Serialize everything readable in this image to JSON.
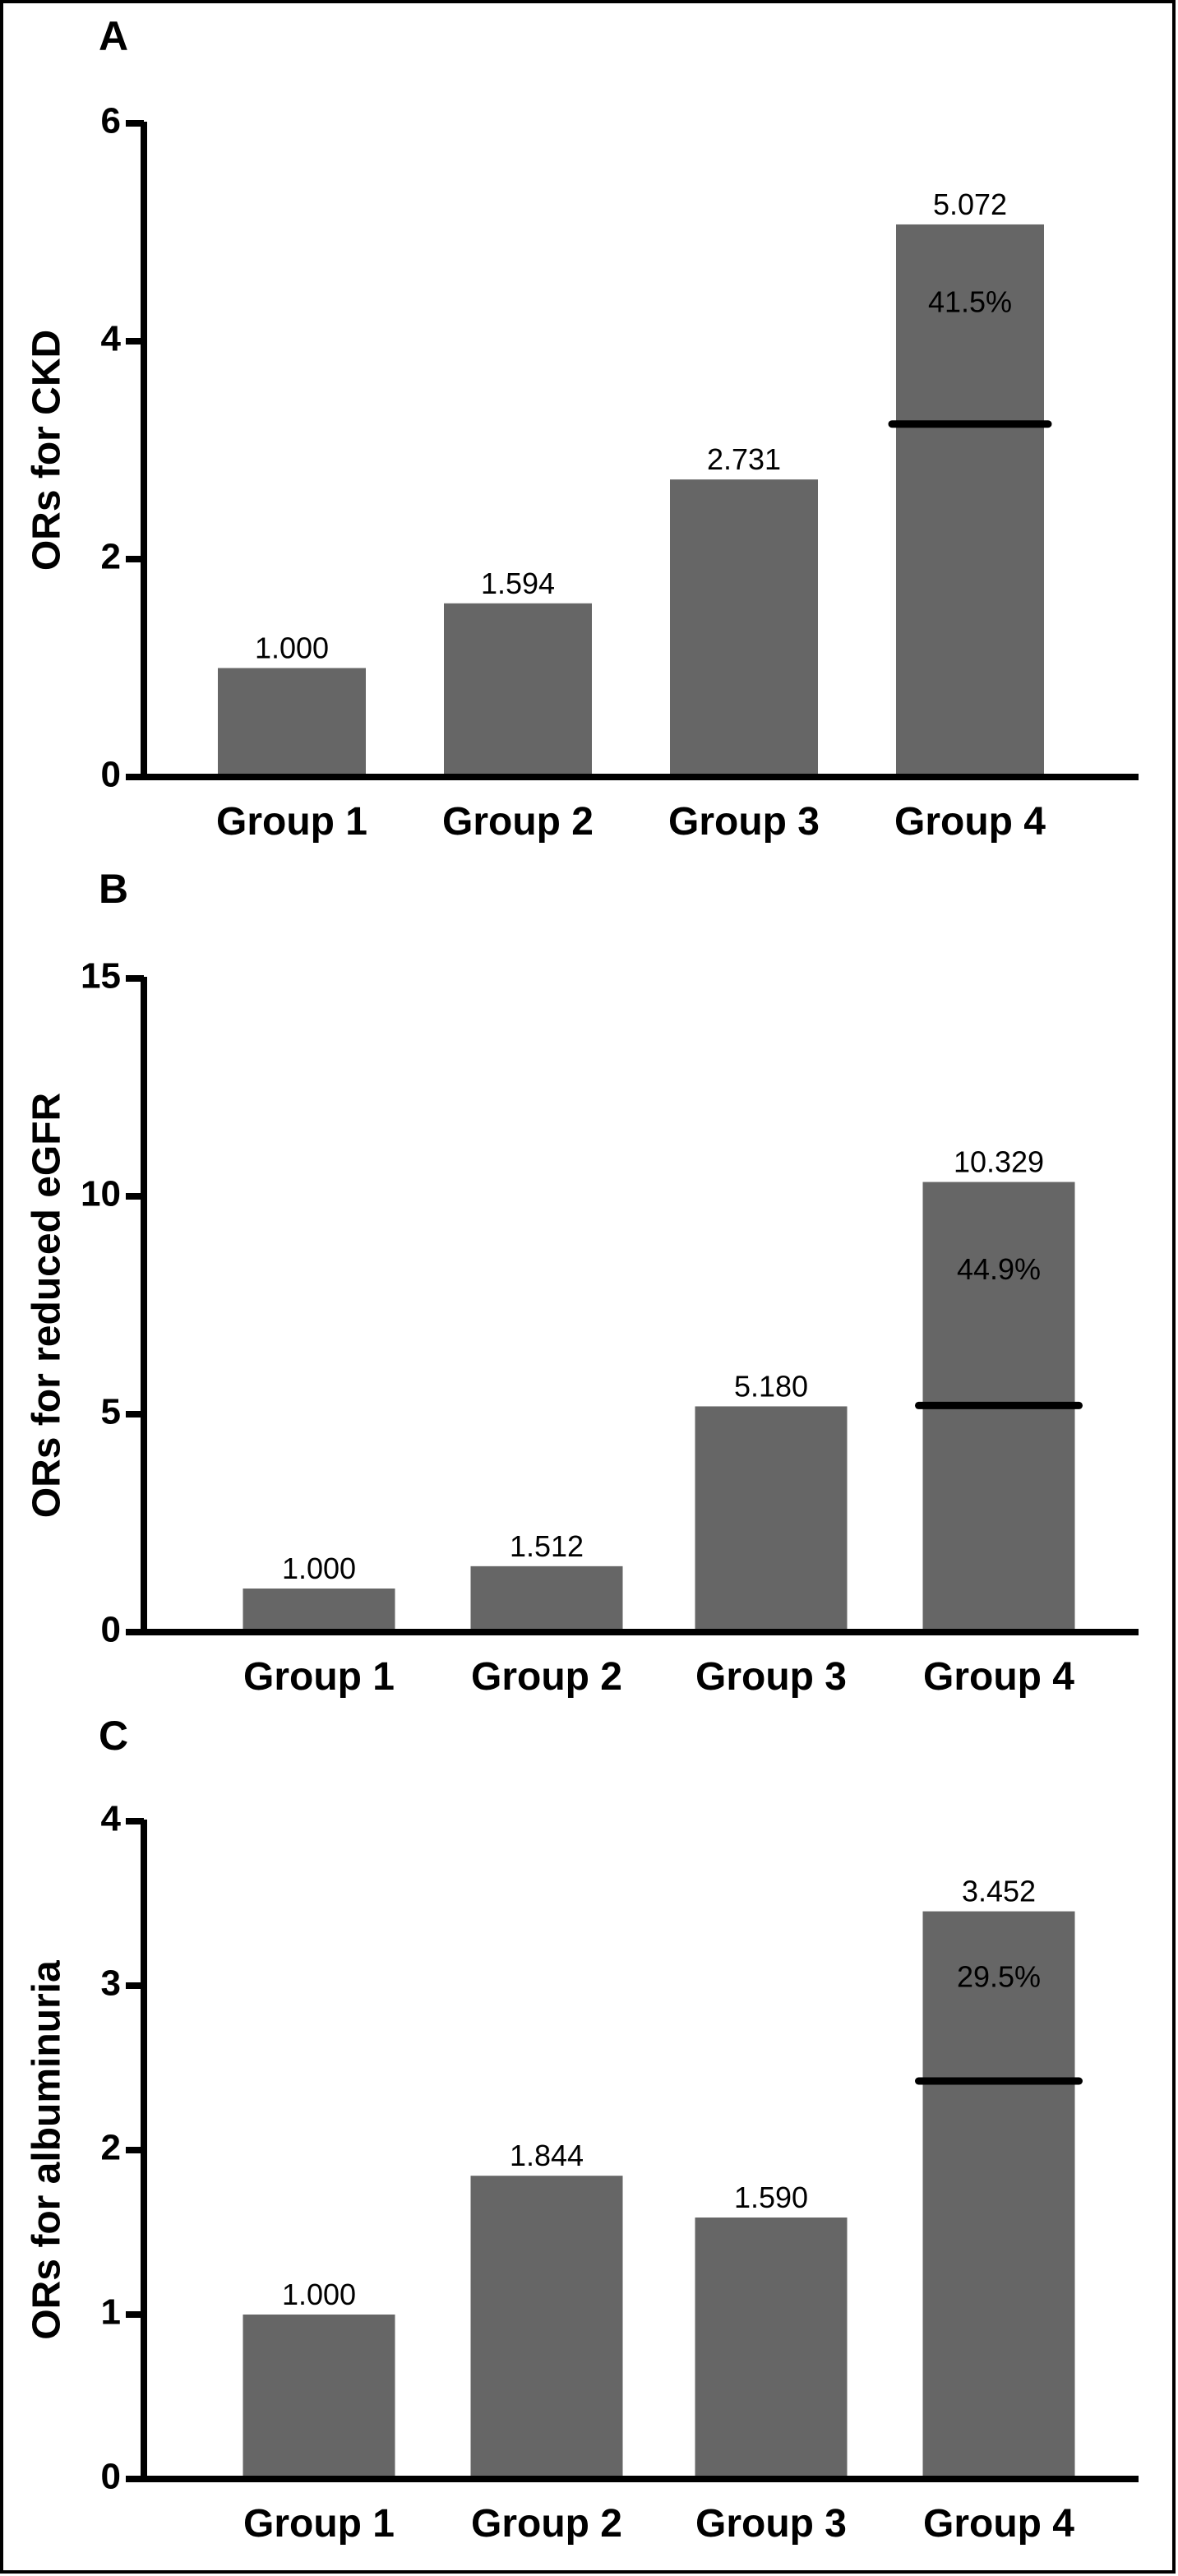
{
  "chart_data": [
    {
      "panel": "A",
      "type": "bar",
      "categories": [
        "Group 1",
        "Group 2",
        "Group 3",
        "Group 4"
      ],
      "values": [
        1.0,
        1.594,
        2.731,
        5.072
      ],
      "value_labels": [
        "1.000",
        "1.594",
        "2.731",
        "5.072"
      ],
      "ylabel": "ORs for CKD",
      "ylim": [
        0,
        6
      ],
      "yticks": [
        0,
        2,
        4,
        6
      ],
      "marker_line_value": 3.24,
      "annotation": "41.5%",
      "bar_color": "#666666",
      "grid": false
    },
    {
      "panel": "B",
      "type": "bar",
      "categories": [
        "Group 1",
        "Group 2",
        "Group 3",
        "Group 4"
      ],
      "values": [
        1.0,
        1.512,
        5.18,
        10.329
      ],
      "value_labels": [
        "1.000",
        "1.512",
        "5.180",
        "10.329"
      ],
      "ylabel": "ORs for reduced eGFR",
      "ylim": [
        0,
        15
      ],
      "yticks": [
        0,
        5,
        10,
        15
      ],
      "marker_line_value": 5.2,
      "annotation": "44.9%",
      "bar_color": "#666666",
      "grid": false
    },
    {
      "panel": "C",
      "type": "bar",
      "categories": [
        "Group 1",
        "Group 2",
        "Group 3",
        "Group 4"
      ],
      "values": [
        1.0,
        1.844,
        1.59,
        3.452
      ],
      "value_labels": [
        "1.000",
        "1.844",
        "1.590",
        "3.452"
      ],
      "ylabel": "ORs for albuminuria",
      "ylim": [
        0,
        4
      ],
      "yticks": [
        0,
        1,
        2,
        3,
        4
      ],
      "marker_line_value": 2.42,
      "annotation": "29.5%",
      "bar_color": "#666666",
      "grid": false
    }
  ]
}
